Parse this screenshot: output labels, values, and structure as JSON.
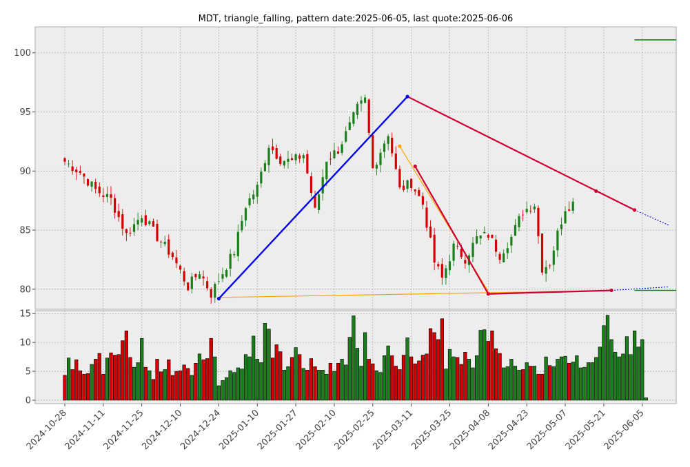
{
  "chart_data": {
    "type": "candlestick",
    "title": "MDT, triangle_falling, pattern date:2025-06-05, last quote:2025-06-06",
    "colors": {
      "background": "#ededed",
      "grid": "#b0b0b0",
      "up": "#1a7f1a",
      "down": "#d40000",
      "triangle_line": "#0000ee",
      "pattern_line": "#cc0033",
      "aux_line": "#ffa500",
      "green_marker": "#008000"
    },
    "price_axis": {
      "ylim": [
        78.3,
        102.2
      ],
      "ticks": [
        80,
        85,
        90,
        95,
        100
      ]
    },
    "volume_axis": {
      "ylim": [
        -0.6,
        15.5
      ],
      "ticks": [
        0,
        5,
        10,
        15
      ],
      "unit": "millions"
    },
    "x_ticks": [
      "2024-10-28",
      "2024-11-11",
      "2024-11-25",
      "2024-12-10",
      "2024-12-24",
      "2025-01-10",
      "2025-01-27",
      "2025-02-10",
      "2025-02-25",
      "2025-03-11",
      "2025-03-25",
      "2025-04-08",
      "2025-04-23",
      "2025-05-07",
      "2025-05-21",
      "2025-06-05"
    ],
    "close_anchors": [
      [
        0,
        90.8
      ],
      [
        4,
        89.9
      ],
      [
        8,
        88.4
      ],
      [
        12,
        87.6
      ],
      [
        16,
        84.6
      ],
      [
        20,
        86.3
      ],
      [
        24,
        84.4
      ],
      [
        28,
        82.8
      ],
      [
        32,
        80.2
      ],
      [
        35,
        81.5
      ],
      [
        38,
        79.6
      ],
      [
        41,
        81.4
      ],
      [
        44,
        83.2
      ],
      [
        47,
        87.1
      ],
      [
        50,
        88.6
      ],
      [
        53,
        92.2
      ],
      [
        56,
        91.0
      ],
      [
        59,
        90.8
      ],
      [
        62,
        91.4
      ],
      [
        65,
        86.6
      ],
      [
        68,
        91.0
      ],
      [
        71,
        91.8
      ],
      [
        74,
        93.8
      ],
      [
        76,
        95.3
      ],
      [
        78,
        96.0
      ],
      [
        80,
        90.2
      ],
      [
        84,
        93.2
      ],
      [
        87,
        88.4
      ],
      [
        90,
        89.0
      ],
      [
        93,
        87.2
      ],
      [
        96,
        82.3
      ],
      [
        98,
        80.9
      ],
      [
        101,
        83.6
      ],
      [
        104,
        82.6
      ],
      [
        107,
        84.3
      ],
      [
        110,
        84.6
      ],
      [
        113,
        82.9
      ],
      [
        116,
        84.4
      ],
      [
        119,
        86.6
      ],
      [
        122,
        87.2
      ],
      [
        124,
        81.8
      ],
      [
        126,
        82.2
      ],
      [
        128,
        84.7
      ],
      [
        130,
        86.9
      ],
      [
        132,
        87.3
      ]
    ],
    "volumes": [
      4.3,
      7.3,
      5.3,
      7.0,
      5.1,
      4.5,
      4.6,
      6.2,
      7.1,
      8.1,
      4.5,
      7.3,
      8.2,
      7.8,
      7.9,
      10.3,
      12.0,
      7.4,
      5.7,
      6.5,
      10.7,
      5.7,
      5.1,
      3.6,
      7.1,
      4.9,
      5.3,
      7.0,
      4.3,
      5.0,
      5.1,
      6.1,
      5.5,
      4.3,
      6.4,
      8.0,
      7.0,
      7.2,
      10.7,
      7.5,
      2.5,
      3.4,
      3.9,
      5.1,
      4.8,
      5.6,
      5.4,
      7.9,
      7.5,
      11.1,
      7.1,
      6.5,
      13.3,
      12.3,
      7.3,
      9.6,
      8.4,
      5.2,
      5.8,
      7.4,
      9.1,
      7.9,
      5.5,
      5.2,
      7.2,
      5.8,
      5.2,
      5.2,
      4.5,
      6.4,
      5.0,
      6.4,
      7.1,
      6.1,
      10.9,
      14.6,
      9.0,
      5.9,
      11.7,
      7.1,
      6.3,
      5.1,
      4.8,
      7.7,
      9.4,
      7.7,
      5.9,
      5.3,
      7.8,
      10.8,
      7.5,
      6.3,
      6.8,
      7.8,
      8.0,
      12.4,
      11.7,
      10.5,
      14.1,
      5.4,
      8.8,
      7.5,
      7.4,
      6.2,
      8.3,
      7.1,
      5.6,
      7.7,
      12.1,
      12.2,
      10.2,
      12.0,
      8.9,
      8.1,
      5.6,
      5.8,
      7.1,
      5.9,
      5.2,
      5.3,
      6.5,
      5.9,
      5.9,
      4.5,
      4.5,
      7.5,
      6.0,
      5.8,
      7.1,
      7.5,
      7.6,
      6.4,
      6.6,
      7.7,
      5.6,
      5.7,
      6.5,
      6.5,
      7.4,
      9.2,
      12.9,
      14.7,
      10.5,
      8.3,
      7.5,
      8.0,
      11.0,
      7.9,
      12.0,
      9.2,
      10.5,
      0.4
    ],
    "triangle_line": [
      [
        40,
        79.2
      ],
      [
        89,
        96.3
      ]
    ],
    "pattern_lines": [
      {
        "points": [
          [
            89,
            96.3
          ],
          [
            148,
            86.7
          ]
        ]
      },
      {
        "points": [
          [
            91,
            90.4
          ],
          [
            110,
            79.6
          ],
          [
            142,
            79.9
          ]
        ]
      }
    ],
    "aux_lines": [
      {
        "points": [
          [
            40,
            79.3
          ],
          [
            110,
            79.7
          ],
          [
            142,
            79.9
          ]
        ]
      },
      {
        "points": [
          [
            87,
            92.1
          ],
          [
            110,
            79.8
          ]
        ]
      }
    ],
    "projection_lines": [
      {
        "points": [
          [
            148,
            86.7
          ],
          [
            157,
            85.4
          ]
        ]
      },
      {
        "points": [
          [
            142,
            79.9
          ],
          [
            157,
            80.2
          ]
        ]
      }
    ],
    "pivot_points": [
      [
        40,
        79.2
      ],
      [
        89,
        96.3
      ],
      [
        91,
        90.4
      ],
      [
        110,
        79.6
      ],
      [
        138,
        88.3
      ],
      [
        142,
        79.9
      ],
      [
        148,
        86.7
      ],
      [
        87,
        92.1
      ]
    ],
    "level_markers": [
      {
        "value": 101.1,
        "x0": 148,
        "x1": 157
      },
      {
        "value": 79.9,
        "x0": 148,
        "x1": 157
      }
    ]
  }
}
